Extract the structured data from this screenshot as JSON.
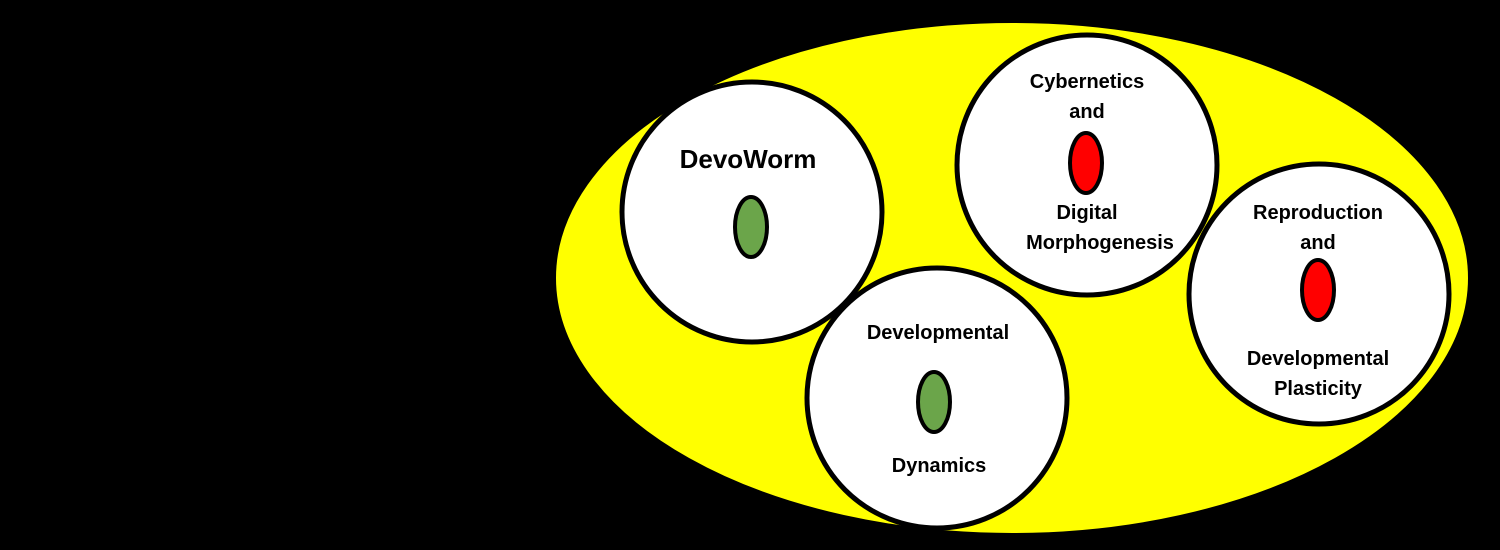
{
  "diagram": {
    "colors": {
      "background": "#000000",
      "container_fill": "#ffff00",
      "circle_fill": "#ffffff",
      "outline": "#000000",
      "marker_green": "#6ba54a",
      "marker_red": "#ff0000"
    },
    "nodes": [
      {
        "id": "devoworm",
        "lines": [
          "DevoWorm"
        ],
        "marker_color": "green"
      },
      {
        "id": "developmental-dynamics",
        "lines": [
          "Developmental",
          "Dynamics"
        ],
        "marker_color": "green"
      },
      {
        "id": "cybernetics-digital-morphogenesis",
        "lines": [
          "Cybernetics",
          "and",
          "Digital",
          "Morphogenesis"
        ],
        "marker_color": "red"
      },
      {
        "id": "reproduction-developmental-plasticity",
        "lines": [
          "Reproduction",
          "and",
          "Developmental",
          "Plasticity"
        ],
        "marker_color": "red"
      }
    ]
  }
}
